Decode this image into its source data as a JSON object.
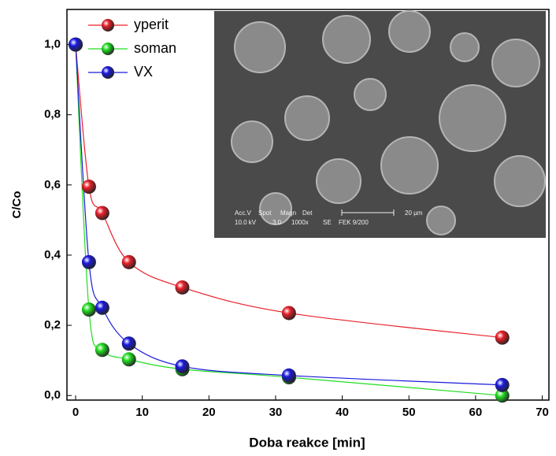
{
  "chart_data": {
    "type": "scatter",
    "x_label": "Doba reakce [min]",
    "y_label": "C/Co",
    "x": [
      0,
      2,
      4,
      8,
      16,
      32,
      64
    ],
    "series": [
      {
        "name": "yperit",
        "color": "#e8202a",
        "values": [
          1.0,
          0.595,
          0.52,
          0.38,
          0.308,
          0.235,
          0.165
        ]
      },
      {
        "name": "soman",
        "color": "#22dd22",
        "values": [
          1.0,
          0.245,
          0.13,
          0.103,
          0.075,
          0.052,
          0.0
        ]
      },
      {
        "name": "VX",
        "color": "#1a1adc",
        "values": [
          1.0,
          0.38,
          0.25,
          0.148,
          0.083,
          0.057,
          0.03
        ]
      }
    ],
    "xlim": [
      -1.3,
      71
    ],
    "ylim": [
      -0.013,
      1.1
    ],
    "xticks": [
      0,
      10,
      20,
      30,
      40,
      50,
      60,
      70
    ],
    "yticks": [
      {
        "value": 0,
        "label": "0,0"
      },
      {
        "value": 0.2,
        "label": "0,2"
      },
      {
        "value": 0.4,
        "label": "0,4"
      },
      {
        "value": 0.6,
        "label": "0,6"
      },
      {
        "value": 0.8,
        "label": "0,8"
      },
      {
        "value": 1.0,
        "label": "1,0"
      }
    ],
    "legend": "upper-left",
    "inset_labels": [
      "Acc.V",
      "Spot",
      "Magn",
      "Det",
      "20 µm",
      "10.0 kV",
      "3.0",
      "1000x",
      "SE",
      "FEK 9/200"
    ]
  }
}
